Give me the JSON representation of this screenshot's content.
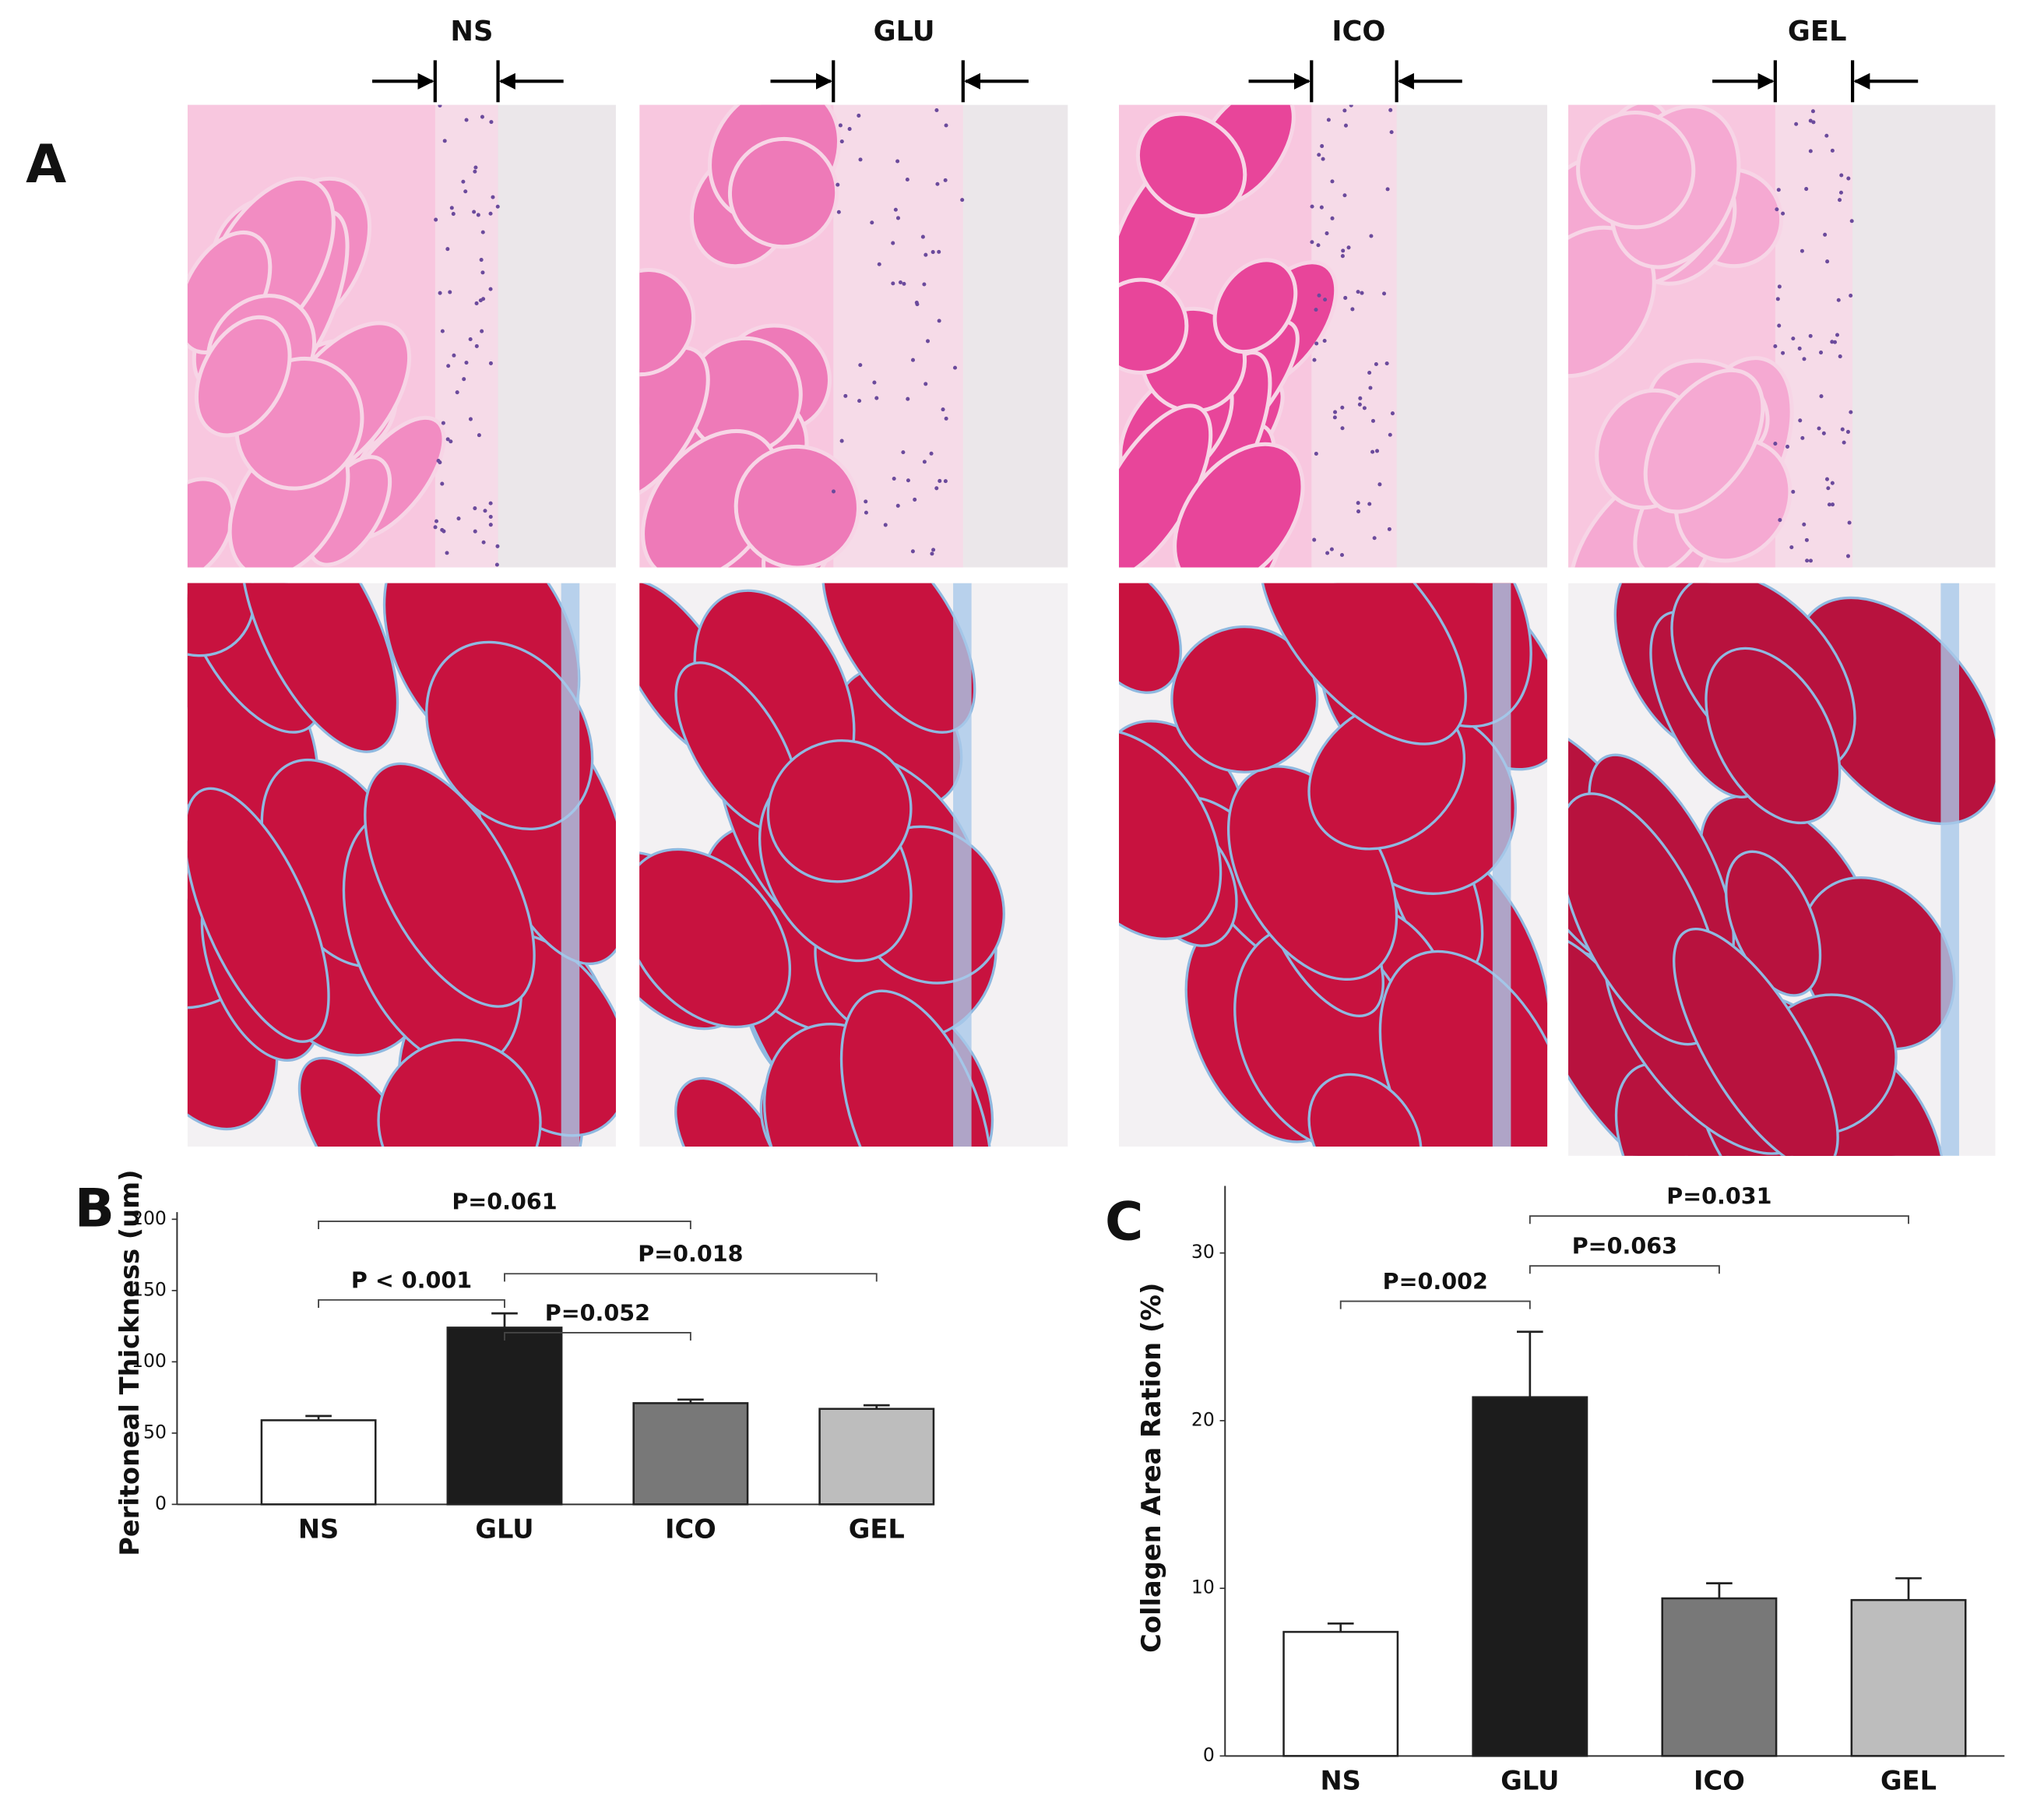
{
  "figure": {
    "panel_a": {
      "label": "A",
      "columns": [
        "NS",
        "GLU",
        "ICO",
        "GEL"
      ]
    }
  },
  "chart_data": [
    {
      "type": "bar",
      "panel_label": "B",
      "ylabel": "Peritoneal Thickness (um)",
      "categories": [
        "NS",
        "GLU",
        "ICO",
        "GEL"
      ],
      "values": [
        59,
        124,
        71,
        67
      ],
      "errors": [
        3,
        10,
        2.5,
        2.5
      ],
      "colors": [
        "#ffffff",
        "#1c1c1c",
        "#787878",
        "#bdbdbd"
      ],
      "ylim": [
        0,
        205
      ],
      "yticks": [
        0,
        50,
        100,
        150,
        200
      ],
      "comparisons": [
        {
          "between": [
            "NS",
            "ICO"
          ],
          "label": "P=0.061"
        },
        {
          "between": [
            "NS",
            "GLU"
          ],
          "label": "P < 0.001"
        },
        {
          "between": [
            "GLU",
            "GEL"
          ],
          "label": "P=0.018"
        },
        {
          "between": [
            "GLU",
            "ICO"
          ],
          "label": "P=0.052"
        }
      ]
    },
    {
      "type": "bar",
      "panel_label": "C",
      "ylabel": "Collagen Area Ration (%)",
      "categories": [
        "NS",
        "GLU",
        "ICO",
        "GEL"
      ],
      "values": [
        7.4,
        21.4,
        9.4,
        9.3
      ],
      "errors": [
        0.5,
        3.9,
        0.9,
        1.3
      ],
      "colors": [
        "#ffffff",
        "#1c1c1c",
        "#787878",
        "#bdbdbd"
      ],
      "ylim": [
        0,
        34
      ],
      "yticks": [
        0,
        10,
        20,
        30
      ],
      "comparisons": [
        {
          "between": [
            "NS",
            "GLU"
          ],
          "label": "P=0.002"
        },
        {
          "between": [
            "GLU",
            "ICO"
          ],
          "label": "P=0.063"
        },
        {
          "between": [
            "GLU",
            "GEL"
          ],
          "label": "P=0.031"
        }
      ]
    }
  ]
}
